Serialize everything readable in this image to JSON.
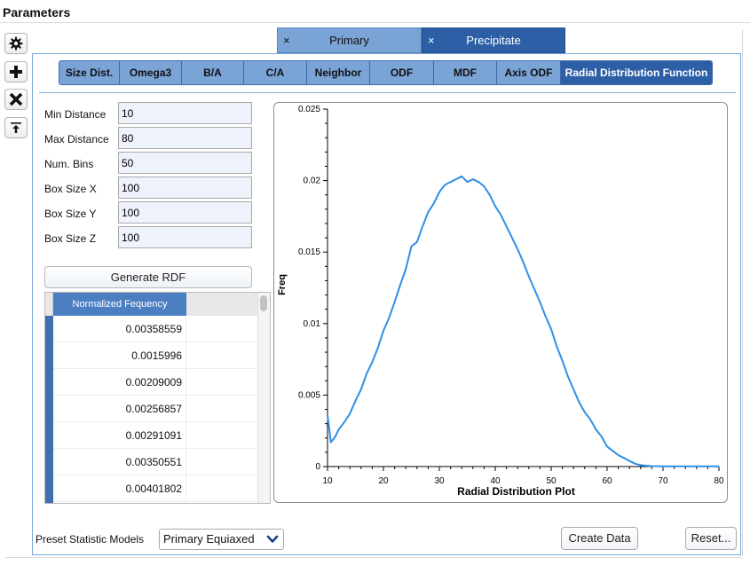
{
  "window": {
    "title": "Parameters"
  },
  "sidebar": {
    "buttons": [
      {
        "name": "gear-icon"
      },
      {
        "name": "plus-icon"
      },
      {
        "name": "close-icon"
      },
      {
        "name": "move-to-top-icon"
      }
    ]
  },
  "phase_tabs": [
    {
      "label": "Primary",
      "close": "×",
      "active": false
    },
    {
      "label": "Precipitate",
      "close": "×",
      "active": true
    }
  ],
  "sub_tabs": [
    {
      "label": "Size Dist.",
      "active": false
    },
    {
      "label": "Omega3",
      "active": false
    },
    {
      "label": "B/A",
      "active": false
    },
    {
      "label": "C/A",
      "active": false
    },
    {
      "label": "Neighbor",
      "active": false
    },
    {
      "label": "ODF",
      "active": false
    },
    {
      "label": "MDF",
      "active": false
    },
    {
      "label": "Axis ODF",
      "active": false
    },
    {
      "label": "Radial Distribution Function",
      "active": true
    }
  ],
  "form": {
    "fields": [
      {
        "label": "Min Distance",
        "value": "10"
      },
      {
        "label": "Max Distance",
        "value": "80"
      },
      {
        "label": "Num. Bins",
        "value": "50"
      },
      {
        "label": "Box Size X",
        "value": "100"
      },
      {
        "label": "Box Size Y",
        "value": "100"
      },
      {
        "label": "Box Size Z",
        "value": "100"
      }
    ],
    "generate_button": "Generate RDF"
  },
  "table": {
    "column_header": "Normalized Fequency",
    "rows": [
      "0.00358559",
      "0.0015996",
      "0.00209009",
      "0.00256857",
      "0.00291091",
      "0.00350551",
      "0.00401802"
    ]
  },
  "chart_data": {
    "type": "line",
    "title": "",
    "xlabel": "Radial Distribution Plot",
    "ylabel": "Freq",
    "xlim": [
      10,
      80
    ],
    "ylim": [
      0,
      0.025
    ],
    "x_ticks": [
      10,
      20,
      30,
      40,
      50,
      60,
      70,
      80
    ],
    "y_ticks": [
      0,
      0.005,
      0.01,
      0.015,
      0.02,
      0.025
    ],
    "x_tick_labels": [
      "10",
      "20",
      "30",
      "40",
      "50",
      "60",
      "70",
      "80"
    ],
    "y_tick_labels": [
      "0",
      "0.005",
      "0.01",
      "0.015",
      "0.02",
      "0.025"
    ],
    "grid": false,
    "line_color": "#2f8fe6",
    "series": [
      {
        "x": [
          10,
          10.6,
          11.4,
          12,
          13,
          14,
          15,
          16,
          17,
          18,
          19,
          20,
          21,
          22,
          23,
          24,
          25,
          26,
          27,
          28,
          29,
          30,
          31,
          32,
          33,
          34,
          35,
          36,
          37,
          38,
          39,
          40,
          41,
          42,
          43,
          44,
          45,
          46,
          47,
          48,
          49,
          50,
          51,
          52,
          53,
          54,
          55,
          56,
          57,
          58,
          59,
          60,
          61,
          62,
          63,
          64,
          65,
          66,
          67,
          68,
          70,
          72,
          75,
          78,
          80
        ],
        "values": [
          0.0036,
          0.0017,
          0.0021,
          0.0026,
          0.0031,
          0.0037,
          0.0046,
          0.0054,
          0.0065,
          0.0073,
          0.0083,
          0.0095,
          0.0104,
          0.0115,
          0.0127,
          0.0138,
          0.0154,
          0.0157,
          0.0168,
          0.0178,
          0.0184,
          0.0192,
          0.0197,
          0.0199,
          0.0201,
          0.0203,
          0.0199,
          0.0201,
          0.0199,
          0.0196,
          0.019,
          0.0182,
          0.0176,
          0.0168,
          0.016,
          0.0152,
          0.0143,
          0.0133,
          0.0124,
          0.0115,
          0.0105,
          0.0096,
          0.0084,
          0.0074,
          0.0063,
          0.0054,
          0.0045,
          0.0038,
          0.0033,
          0.0026,
          0.0021,
          0.0014,
          0.0011,
          0.0008,
          0.0006,
          0.0004,
          0.0002,
          0.0001,
          6e-05,
          3e-05,
          2e-05,
          1e-05,
          1e-05,
          1e-05,
          1e-05
        ]
      }
    ]
  },
  "footer": {
    "preset_label": "Preset Statistic Models",
    "preset_value": "Primary Equiaxed",
    "create_button": "Create Data",
    "reset_button": "Reset..."
  }
}
